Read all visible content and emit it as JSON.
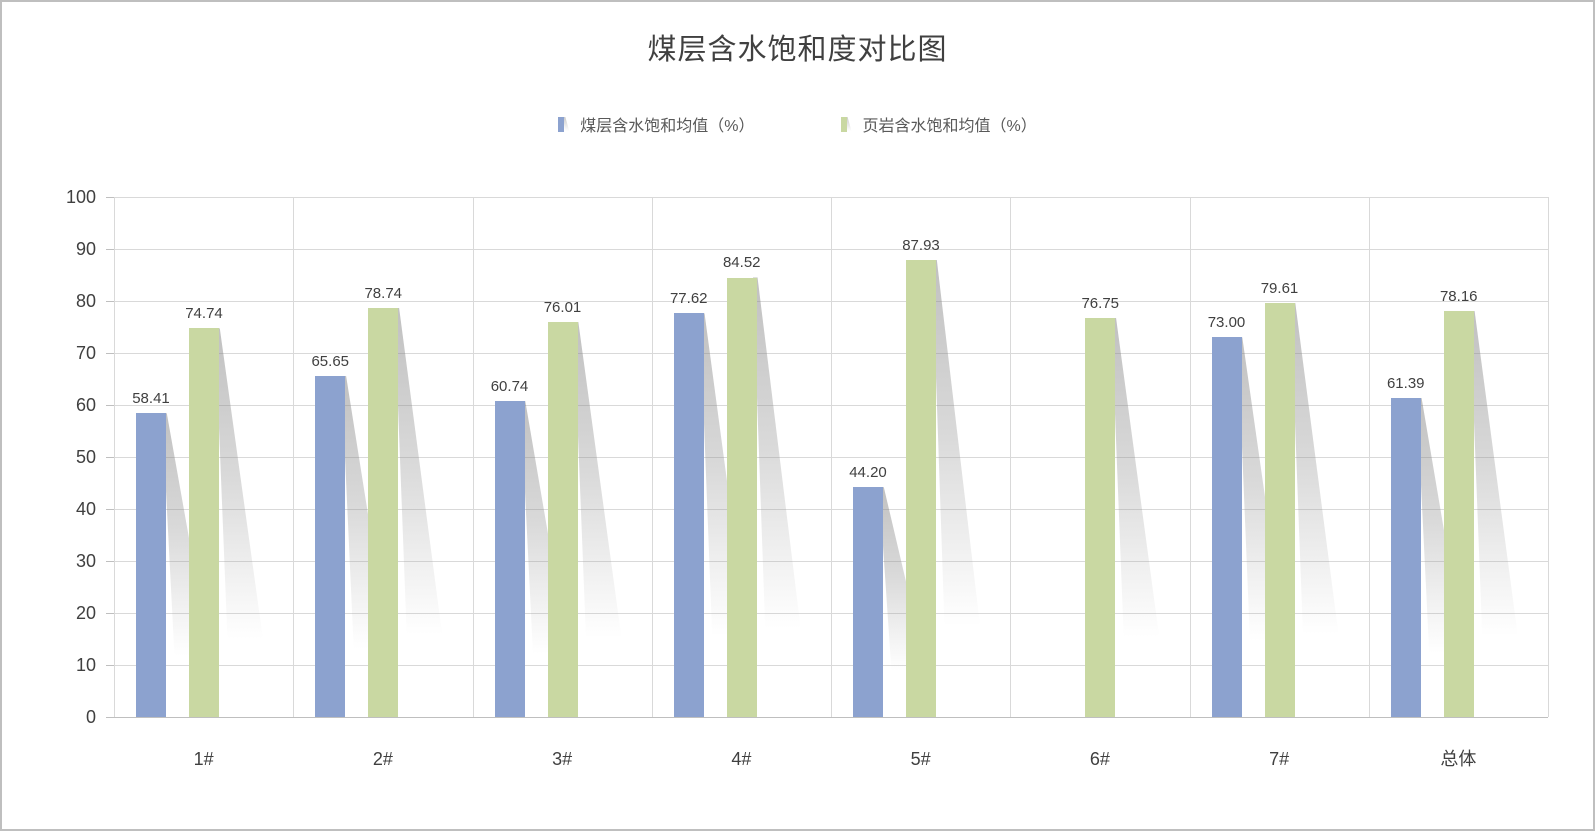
{
  "chart_data": {
    "type": "bar",
    "title": "煤层含水饱和度对比图",
    "categories": [
      "1#",
      "2#",
      "3#",
      "4#",
      "5#",
      "6#",
      "7#",
      "总体"
    ],
    "series": [
      {
        "name": "煤层含水饱和均值（%）",
        "color": "#8CA2CF",
        "values": [
          58.41,
          65.65,
          60.74,
          77.62,
          44.2,
          null,
          73.0,
          61.39
        ]
      },
      {
        "name": "页岩含水饱和均值（%）",
        "color": "#C9D8A2",
        "values": [
          74.74,
          78.74,
          76.01,
          84.52,
          87.93,
          76.75,
          79.61,
          78.16
        ]
      }
    ],
    "xlabel": "",
    "ylabel": "",
    "ylim": [
      0,
      100
    ],
    "ytick_step": 10,
    "yticks": [
      0,
      10,
      20,
      30,
      40,
      50,
      60,
      70,
      80,
      90,
      100
    ],
    "value_label_decimals": 2,
    "grid": true,
    "legend_position": "top",
    "bar_shadow": "perspective-lower-right"
  },
  "colors": {
    "grid": "#D9D9D9",
    "axis_line": "#BFBFBF",
    "tick_text": "#404040",
    "value_label_text": "#404040",
    "legend_text": "#595959",
    "title_text": "#404040",
    "frame_border": "#BFBFBF",
    "background": "#FFFFFF"
  }
}
